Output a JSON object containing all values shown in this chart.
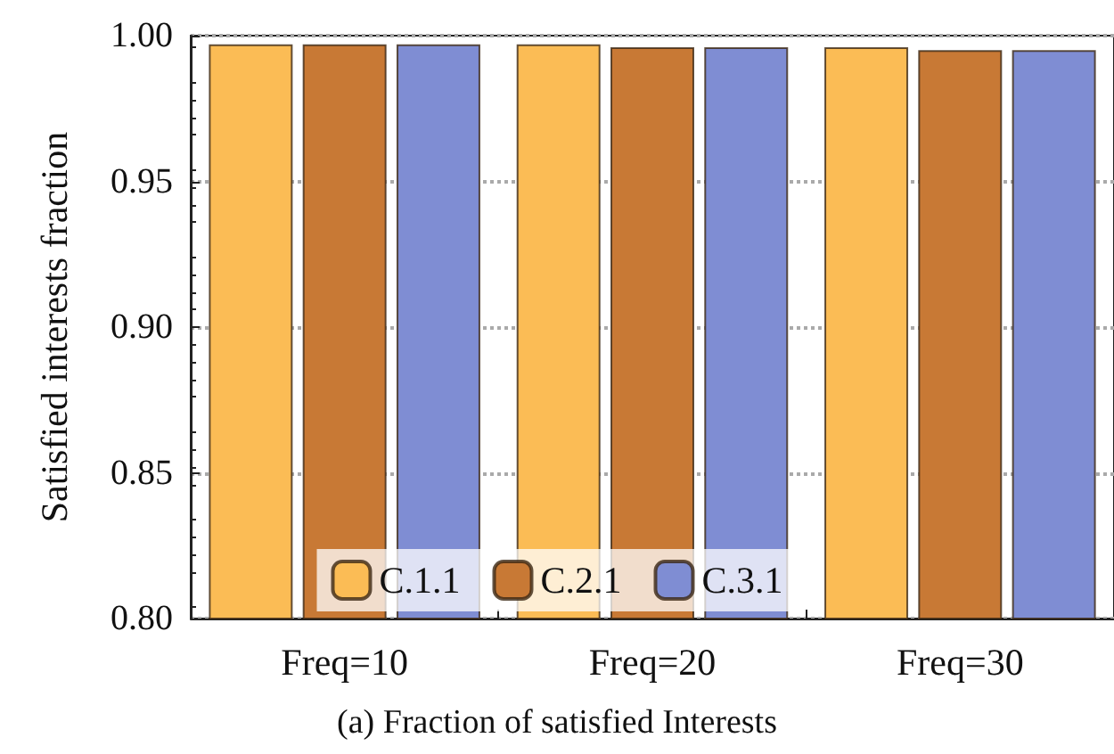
{
  "chart_data": {
    "type": "bar",
    "ylabel": "Satisfied interests fraction",
    "categories": [
      "Freq=10",
      "Freq=20",
      "Freq=30"
    ],
    "series": [
      {
        "name": "C.1.1",
        "color": "#fbbc55",
        "values": [
          0.997,
          0.997,
          0.996
        ]
      },
      {
        "name": "C.2.1",
        "color": "#c87935",
        "values": [
          0.997,
          0.996,
          0.995
        ]
      },
      {
        "name": "C.3.1",
        "color": "#7f8dd3",
        "values": [
          0.997,
          0.996,
          0.995
        ]
      }
    ],
    "ylim": [
      0.8,
      1.0
    ],
    "yticks": [
      {
        "value": 0.8,
        "label": "0.80"
      },
      {
        "value": 0.85,
        "label": "0.85"
      },
      {
        "value": 0.9,
        "label": "0.90"
      },
      {
        "value": 0.95,
        "label": "0.95"
      },
      {
        "value": 1.0,
        "label": "1.00"
      }
    ],
    "grid": "y",
    "legend": "bottom",
    "annotations": [
      "(a) Fraction of satisfied Interests"
    ]
  }
}
